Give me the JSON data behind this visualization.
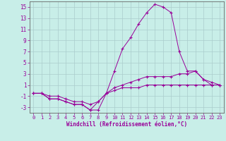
{
  "title": "",
  "xlabel": "Windchill (Refroidissement éolien,°C)",
  "background_color": "#c8eee8",
  "grid_color": "#aacccc",
  "line_color": "#990099",
  "xlim": [
    -0.5,
    23.5
  ],
  "ylim": [
    -4,
    16
  ],
  "yticks": [
    -3,
    -1,
    1,
    3,
    5,
    7,
    9,
    11,
    13,
    15
  ],
  "xticks": [
    0,
    1,
    2,
    3,
    4,
    5,
    6,
    7,
    8,
    9,
    10,
    11,
    12,
    13,
    14,
    15,
    16,
    17,
    18,
    19,
    20,
    21,
    22,
    23
  ],
  "series1": {
    "x": [
      0,
      1,
      2,
      3,
      4,
      5,
      6,
      7,
      8,
      9,
      10,
      11,
      12,
      13,
      14,
      15,
      16,
      17,
      18,
      19,
      20,
      21,
      22,
      23
    ],
    "y": [
      -0.5,
      -0.5,
      -1.5,
      -1.5,
      -2.0,
      -2.5,
      -2.5,
      -3.5,
      -3.5,
      -0.5,
      3.5,
      7.5,
      9.5,
      12.0,
      14.0,
      15.5,
      15.0,
      14.0,
      7.0,
      3.5,
      3.5,
      2.0,
      1.0,
      1.0
    ]
  },
  "series2": {
    "x": [
      0,
      1,
      2,
      3,
      4,
      5,
      6,
      7,
      8,
      9,
      10,
      11,
      12,
      13,
      14,
      15,
      16,
      17,
      18,
      19,
      20,
      21,
      22,
      23
    ],
    "y": [
      -0.5,
      -0.5,
      -1.5,
      -1.5,
      -2.0,
      -2.5,
      -2.5,
      -3.5,
      -2.0,
      -0.5,
      0.5,
      1.0,
      1.5,
      2.0,
      2.5,
      2.5,
      2.5,
      2.5,
      3.0,
      3.0,
      3.5,
      2.0,
      1.5,
      1.0
    ]
  },
  "series3": {
    "x": [
      0,
      1,
      2,
      3,
      4,
      5,
      6,
      7,
      8,
      9,
      10,
      11,
      12,
      13,
      14,
      15,
      16,
      17,
      18,
      19,
      20,
      21,
      22,
      23
    ],
    "y": [
      -0.5,
      -0.5,
      -1.0,
      -1.0,
      -1.5,
      -2.0,
      -2.0,
      -2.5,
      -2.0,
      -0.5,
      0.0,
      0.5,
      0.5,
      0.5,
      1.0,
      1.0,
      1.0,
      1.0,
      1.0,
      1.0,
      1.0,
      1.0,
      1.0,
      1.0
    ]
  }
}
